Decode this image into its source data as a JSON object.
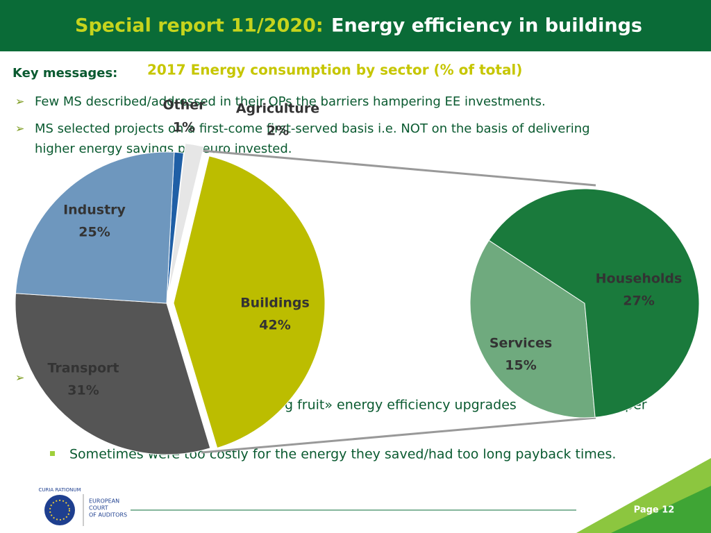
{
  "header": {
    "title_prefix": "Special report 11/2020:",
    "title": "Energy efficiency in buildings"
  },
  "key_messages": {
    "label": "Key messages:",
    "bullets": [
      "Few MS described/addressed in their OPs the barriers hampering EE investments.",
      "MS selected projects on a first-come first-served basis i.e. NOT on the basis of delivering",
      "higher energy savings per euro invested."
    ],
    "sub_bullets": [
      "g fruit» energy efficiency upgrades",
      "per",
      "Sometimes were too costly for the energy they saved/had too long payback times."
    ]
  },
  "chart_data": {
    "type": "pie-of-pie",
    "title": "2017 Energy consumption by sector (% of total)",
    "categories": [
      "Other",
      "Agriculture",
      "Buildings",
      "Transport",
      "Industry"
    ],
    "values": [
      1,
      2,
      42,
      31,
      25
    ],
    "value_labels": [
      "1%",
      "2%",
      "42%",
      "31%",
      "25%"
    ],
    "colors": [
      "#1f5fa6",
      "#e6e6e6",
      "#bcbd00",
      "#555555",
      "#6e97be"
    ],
    "secondary": {
      "categories": [
        "Services",
        "Households"
      ],
      "values": [
        15,
        27
      ],
      "value_labels": [
        "15%",
        "27%"
      ],
      "colors": [
        "#6faa7e",
        "#1a7a3c"
      ]
    }
  },
  "footer": {
    "organisation": [
      "EUROPEAN",
      "COURT",
      "OF AUDITORS"
    ],
    "page": "Page 12",
    "motto": "CURIA RATIONUM"
  }
}
